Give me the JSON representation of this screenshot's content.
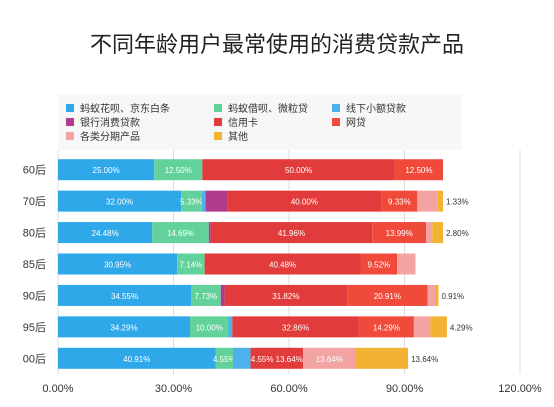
{
  "chart_data": {
    "type": "bar",
    "stacked": true,
    "orientation": "horizontal",
    "title": "不同年龄用户最常使用的消费贷款产品",
    "categories": [
      "60后",
      "70后",
      "80后",
      "85后",
      "90后",
      "95后",
      "00后"
    ],
    "xlim": [
      0,
      120
    ],
    "x_ticks": [
      "0.00%",
      "30.00%",
      "60.00%",
      "90.00%",
      "120.00%"
    ],
    "legend_position": "top",
    "series": [
      {
        "name": "蚂蚁花呗、京东白条",
        "color": "#2fa8ea",
        "values": [
          25.0,
          32.0,
          24.48,
          30.95,
          34.55,
          34.29,
          40.91
        ],
        "labels": [
          "25.00%",
          "32.00%",
          "24.48%",
          "30.95%",
          "34.55%",
          "34.29%",
          "40.91%"
        ]
      },
      {
        "name": "蚂蚁借呗、微粒贷",
        "color": "#63d29a",
        "values": [
          12.5,
          5.33,
          14.69,
          7.14,
          7.73,
          10.0,
          4.55
        ],
        "labels": [
          "12.50%",
          "5.33%",
          "14.69%",
          "7.14%",
          "7.73%",
          "10.00%",
          "4.55%"
        ]
      },
      {
        "name": "线下小额贷款",
        "color": "#4fb0ee",
        "values": [
          0,
          1.0,
          0,
          0,
          0,
          1.0,
          4.55
        ],
        "labels": [
          "",
          "",
          "",
          "",
          "",
          "",
          ""
        ]
      },
      {
        "name": "银行消费贷款",
        "color": "#b23a8e",
        "values": [
          0,
          5.67,
          0.5,
          0,
          1.0,
          0,
          0
        ],
        "labels": [
          "",
          "",
          "",
          "",
          "",
          "",
          ""
        ]
      },
      {
        "name": "信用卡",
        "color": "#e23b3b",
        "values": [
          50.0,
          40.0,
          41.96,
          40.48,
          31.82,
          32.86,
          13.64
        ],
        "labels": [
          "50.00%",
          "40.00%",
          "41.96%",
          "40.48%",
          "31.82%",
          "32.86%",
          "4.55% 13.64%"
        ]
      },
      {
        "name": "网贷",
        "color": "#f04a3a",
        "values": [
          12.5,
          9.33,
          13.99,
          9.52,
          20.91,
          14.29,
          0
        ],
        "labels": [
          "12.50%",
          "9.33%",
          "13.99%",
          "9.52%",
          "20.91%",
          "14.29%",
          ""
        ]
      },
      {
        "name": "各类分期产品",
        "color": "#f4a3a3",
        "values": [
          0,
          5.33,
          1.58,
          4.76,
          1.91,
          4.28,
          13.64
        ],
        "labels": [
          "",
          "",
          "",
          "",
          "",
          "",
          "13.64%"
        ]
      },
      {
        "name": "其他",
        "color": "#f2b233",
        "values": [
          0,
          1.33,
          2.8,
          0,
          0.91,
          4.29,
          13.64
        ],
        "labels": [
          "",
          "1.33%",
          "2.80%",
          "",
          "0.91%",
          "4.29%",
          "13.64%"
        ]
      }
    ],
    "outside_label_series": [
      "其他"
    ]
  }
}
